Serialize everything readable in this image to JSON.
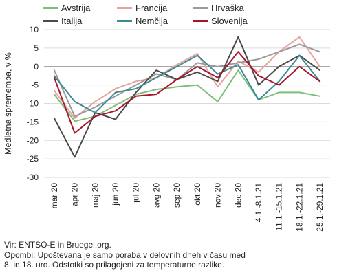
{
  "chart_data": {
    "type": "line",
    "ylabel": "Medletna sprememba, v %",
    "ylim": [
      -30,
      10
    ],
    "yticks": [
      10,
      5,
      0,
      -5,
      -10,
      -15,
      -20,
      -25,
      -30
    ],
    "grid": "horizontal",
    "legend_position": "top",
    "categories": [
      "mar 20",
      "apr 20",
      "maj 20",
      "jun 20",
      "jul 20",
      "avg 20",
      "sep 20",
      "okt 20",
      "nov 20",
      "dec 20",
      "4.1.-8.1.21",
      "11.1.-15.1.21",
      "18.1.-22.1.21",
      "25.1.-29.1.21"
    ],
    "series": [
      {
        "name": "Avstrija",
        "color": "#7dbf7a",
        "values": [
          -7.5,
          -14.8,
          -13.5,
          -10.5,
          -7.5,
          -6.2,
          -5.5,
          -5.0,
          -9.5,
          -1.0,
          -9.0,
          -7.0,
          -7.0,
          -8.0
        ]
      },
      {
        "name": "Francija",
        "color": "#e8a39e",
        "values": [
          -6.5,
          -14.0,
          -9.5,
          -6.0,
          -4.0,
          -3.0,
          0.5,
          3.5,
          -5.5,
          1.5,
          -1.5,
          4.0,
          8.0,
          0.0
        ]
      },
      {
        "name": "Hrvaška",
        "color": "#9a9a9a",
        "values": [
          -1.0,
          -13.5,
          -11.0,
          -8.0,
          -5.0,
          -2.0,
          -3.5,
          1.0,
          0.0,
          1.0,
          2.0,
          4.0,
          6.0,
          4.0
        ]
      },
      {
        "name": "Italija",
        "color": "#4a4a4a",
        "values": [
          -14.0,
          -24.5,
          -12.5,
          -14.3,
          -7.0,
          -1.0,
          -3.5,
          -1.5,
          -4.0,
          8.0,
          -5.0,
          0.0,
          3.0,
          -1.0
        ]
      },
      {
        "name": "Nemčija",
        "color": "#3d8a92",
        "values": [
          -2.5,
          -9.5,
          -12.5,
          -7.0,
          -6.0,
          -3.0,
          0.0,
          3.0,
          -2.0,
          0.5,
          -9.0,
          -4.0,
          3.0,
          -4.0
        ]
      },
      {
        "name": "Slovenija",
        "color": "#a3172d",
        "values": [
          -3.0,
          -18.0,
          -13.5,
          -12.0,
          -8.0,
          -7.5,
          -3.5,
          0.0,
          -3.0,
          4.0,
          -2.5,
          -5.0,
          0.0,
          -4.0
        ]
      }
    ]
  },
  "footer": {
    "line1": "Vir: ENTSO-E in Bruegel.org.",
    "line2": "Opombi: Upoštevana je samo poraba v delovnih dneh v času med",
    "line3": "8. in 18. uro. Odstotki so prilagojeni za temperaturne razlike."
  }
}
